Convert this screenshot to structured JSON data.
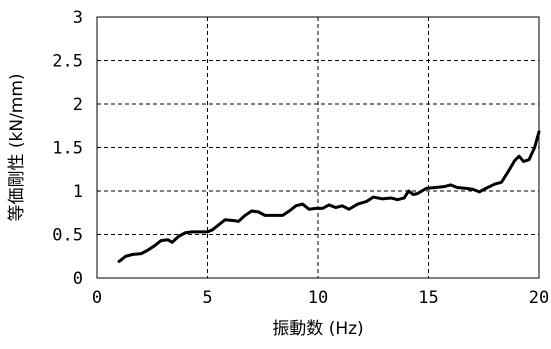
{
  "chart_data": {
    "type": "line",
    "xlabel": "振動数 (Hz)",
    "ylabel": "等価剛性 (kN/mm)",
    "xlim": [
      0,
      20
    ],
    "ylim": [
      0,
      3
    ],
    "x_ticks": [
      "0",
      "5",
      "10",
      "15",
      "20"
    ],
    "y_ticks": [
      "0",
      "0.5",
      "1",
      "1.5",
      "2",
      "2.5",
      "3"
    ],
    "grid": true,
    "line_color": "#000000",
    "series": [
      {
        "points": [
          [
            1.0,
            0.19
          ],
          [
            1.3,
            0.25
          ],
          [
            1.6,
            0.27
          ],
          [
            2.0,
            0.28
          ],
          [
            2.3,
            0.32
          ],
          [
            2.6,
            0.37
          ],
          [
            2.9,
            0.43
          ],
          [
            3.2,
            0.44
          ],
          [
            3.4,
            0.41
          ],
          [
            3.7,
            0.48
          ],
          [
            4.0,
            0.52
          ],
          [
            4.3,
            0.53
          ],
          [
            4.6,
            0.53
          ],
          [
            5.0,
            0.53
          ],
          [
            5.2,
            0.55
          ],
          [
            5.5,
            0.61
          ],
          [
            5.8,
            0.67
          ],
          [
            6.2,
            0.66
          ],
          [
            6.4,
            0.65
          ],
          [
            6.7,
            0.72
          ],
          [
            7.0,
            0.77
          ],
          [
            7.3,
            0.76
          ],
          [
            7.6,
            0.72
          ],
          [
            8.0,
            0.72
          ],
          [
            8.4,
            0.72
          ],
          [
            8.7,
            0.77
          ],
          [
            9.0,
            0.83
          ],
          [
            9.3,
            0.85
          ],
          [
            9.6,
            0.79
          ],
          [
            9.9,
            0.8
          ],
          [
            10.2,
            0.8
          ],
          [
            10.5,
            0.84
          ],
          [
            10.8,
            0.81
          ],
          [
            11.1,
            0.83
          ],
          [
            11.4,
            0.79
          ],
          [
            11.8,
            0.85
          ],
          [
            12.2,
            0.88
          ],
          [
            12.5,
            0.93
          ],
          [
            12.9,
            0.91
          ],
          [
            13.3,
            0.92
          ],
          [
            13.6,
            0.9
          ],
          [
            13.9,
            0.92
          ],
          [
            14.1,
            1.0
          ],
          [
            14.3,
            0.96
          ],
          [
            14.5,
            0.97
          ],
          [
            14.9,
            1.03
          ],
          [
            15.3,
            1.04
          ],
          [
            15.7,
            1.05
          ],
          [
            16.0,
            1.07
          ],
          [
            16.3,
            1.04
          ],
          [
            16.7,
            1.03
          ],
          [
            17.0,
            1.02
          ],
          [
            17.3,
            0.99
          ],
          [
            17.6,
            1.03
          ],
          [
            18.0,
            1.08
          ],
          [
            18.3,
            1.1
          ],
          [
            18.6,
            1.22
          ],
          [
            18.9,
            1.35
          ],
          [
            19.1,
            1.4
          ],
          [
            19.3,
            1.34
          ],
          [
            19.55,
            1.36
          ],
          [
            19.8,
            1.5
          ],
          [
            20.0,
            1.68
          ]
        ]
      }
    ]
  }
}
